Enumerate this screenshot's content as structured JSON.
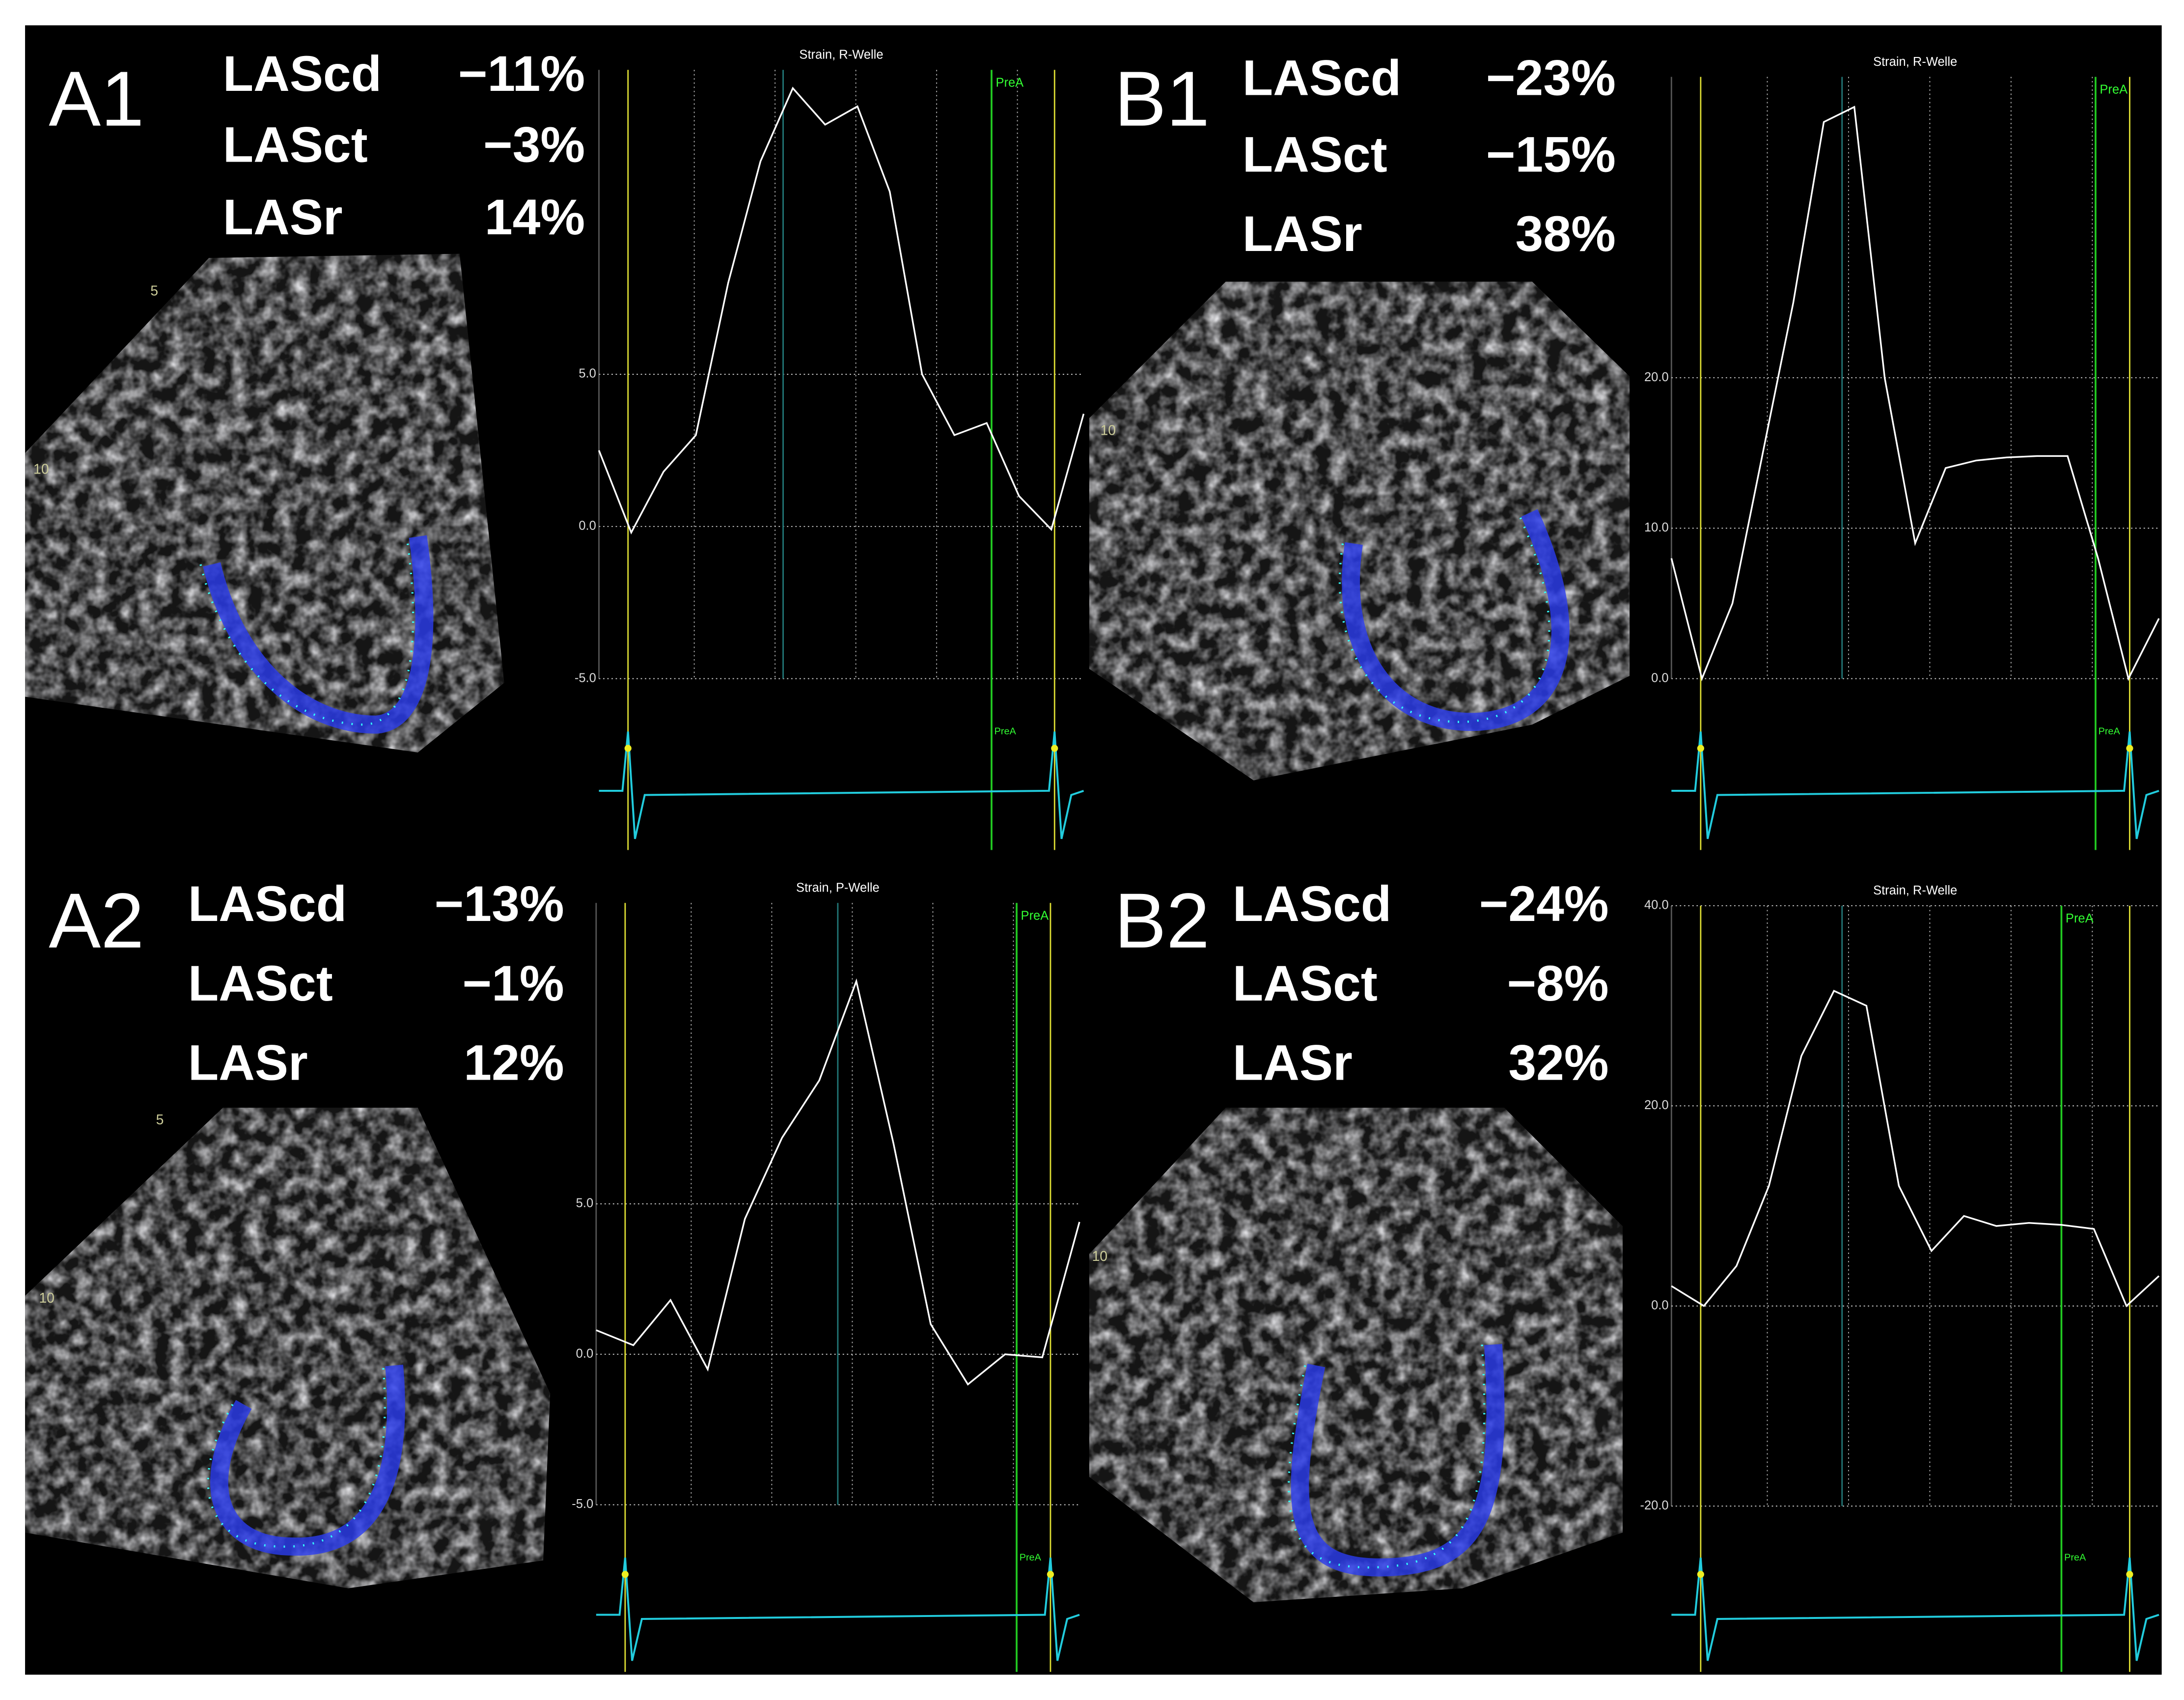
{
  "panels": [
    {
      "label": "A1",
      "depth_labels": [
        "5",
        "10"
      ],
      "metrics": [
        {
          "name": "LAScd",
          "value": "−11%"
        },
        {
          "name": "LASct",
          "value": "−3%"
        },
        {
          "name": "LASr",
          "value": "14%"
        }
      ],
      "chart": {
        "title": "Strain, R-Welle",
        "marker": "PreA",
        "ylim": [
          -5,
          15
        ],
        "yticks": [
          {
            "value": -5,
            "label": "-5.0"
          },
          {
            "value": 0,
            "label": "0.0"
          },
          {
            "value": 5,
            "label": "5.0"
          }
        ],
        "values": [
          2.5,
          -0.2,
          1.8,
          3,
          8,
          12,
          14.4,
          13.2,
          13.8,
          11,
          5,
          3,
          3.4,
          1,
          -0.1,
          3.7
        ]
      }
    },
    {
      "label": "B1",
      "depth_labels": [
        "10"
      ],
      "metrics": [
        {
          "name": "LAScd",
          "value": "−23%"
        },
        {
          "name": "LASct",
          "value": "−15%"
        },
        {
          "name": "LASr",
          "value": "38%"
        }
      ],
      "chart": {
        "title": "Strain, R-Welle",
        "marker": "PreA",
        "ylim": [
          0,
          40
        ],
        "yticks": [
          {
            "value": 0,
            "label": "0.0"
          },
          {
            "value": 10,
            "label": "10.0"
          },
          {
            "value": 20,
            "label": "20.0"
          }
        ],
        "values": [
          8,
          0,
          5,
          15,
          25,
          37,
          38,
          20,
          9,
          14,
          14.5,
          14.7,
          14.8,
          14.8,
          8,
          0,
          4
        ]
      }
    },
    {
      "label": "A2",
      "depth_labels": [
        "5",
        "10"
      ],
      "metrics": [
        {
          "name": "LAScd",
          "value": "−13%"
        },
        {
          "name": "LASct",
          "value": "−1%"
        },
        {
          "name": "LASr",
          "value": "12%"
        }
      ],
      "chart": {
        "title": "Strain, P-Welle",
        "marker": "PreA",
        "ylim": [
          -5,
          15
        ],
        "yticks": [
          {
            "value": -5,
            "label": "-5.0"
          },
          {
            "value": 0,
            "label": "0.0"
          },
          {
            "value": 5,
            "label": "5.0"
          }
        ],
        "values": [
          0.8,
          0.3,
          1.8,
          -0.5,
          4.5,
          7.2,
          9.1,
          12.4,
          7,
          1,
          -1,
          0,
          -0.1,
          4.4
        ]
      }
    },
    {
      "label": "B2",
      "depth_labels": [
        "10"
      ],
      "metrics": [
        {
          "name": "LAScd",
          "value": "−24%"
        },
        {
          "name": "LASct",
          "value": "−8%"
        },
        {
          "name": "LASr",
          "value": "32%"
        }
      ],
      "chart": {
        "title": "Strain, R-Welle",
        "marker": "PreA",
        "ylim": [
          -20,
          40
        ],
        "yticks": [
          {
            "value": -20,
            "label": "-20.0"
          },
          {
            "value": 0,
            "label": "0.0"
          },
          {
            "value": 20,
            "label": "20.0"
          },
          {
            "value": 40,
            "label": "40.0"
          }
        ],
        "values": [
          2,
          0,
          4,
          12,
          25,
          31.5,
          30,
          12,
          5.5,
          9,
          8,
          8.3,
          8.1,
          7.7,
          0,
          3
        ]
      }
    }
  ]
}
